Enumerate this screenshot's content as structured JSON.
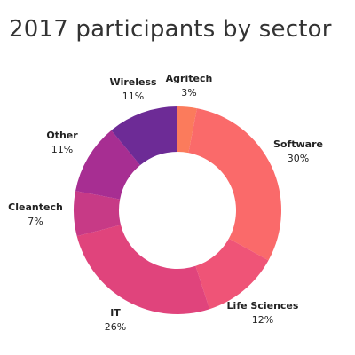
{
  "chart_data": {
    "type": "pie",
    "title": "2017 participants by sector",
    "slices": [
      {
        "label": "Agritech",
        "value": 3,
        "display": "3%",
        "color": "#fb7b5c"
      },
      {
        "label": "Software",
        "value": 30,
        "display": "30%",
        "color": "#fa6a6a"
      },
      {
        "label": "Life Sciences",
        "value": 12,
        "display": "12%",
        "color": "#ef5477"
      },
      {
        "label": "IT",
        "value": 26,
        "display": "26%",
        "color": "#e0447c"
      },
      {
        "label": "Cleantech",
        "value": 7,
        "display": "7%",
        "color": "#c73a86"
      },
      {
        "label": "Other",
        "value": 11,
        "display": "11%",
        "color": "#a72e92"
      },
      {
        "label": "Wireless",
        "value": 11,
        "display": "11%",
        "color": "#6d2b96"
      }
    ],
    "donut": true,
    "legend": "none"
  }
}
